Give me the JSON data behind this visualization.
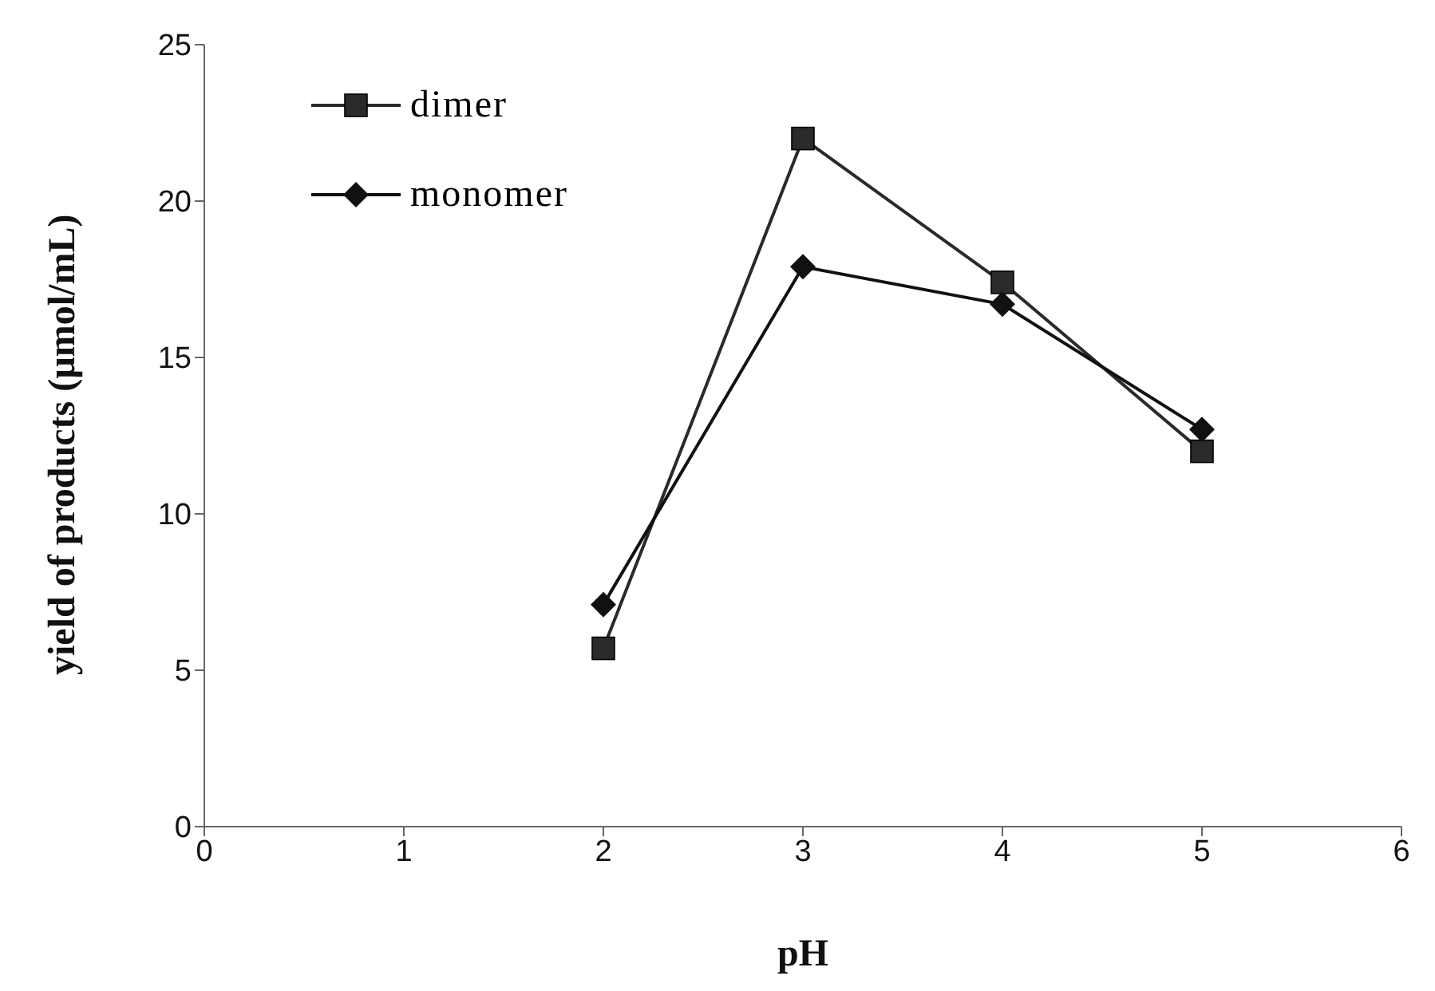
{
  "chart_data": {
    "type": "line",
    "xlabel": "pH",
    "ylabel": "yield of products (µmol/mL)",
    "x": [
      2,
      3,
      4,
      5
    ],
    "series": [
      {
        "name": "dimer",
        "color": "#2a2a2a",
        "marker": "square",
        "values": [
          5.7,
          22,
          17.4,
          12
        ]
      },
      {
        "name": "monomer",
        "color": "#111111",
        "marker": "diamond",
        "values": [
          7.1,
          17.9,
          16.7,
          12.7
        ]
      }
    ],
    "xlim": [
      0,
      6
    ],
    "xticks": [
      0,
      1,
      2,
      3,
      4,
      5,
      6
    ],
    "ylim": [
      0,
      25
    ],
    "yticks": [
      0,
      5,
      10,
      15,
      20,
      25
    ],
    "grid": false,
    "legend": "top left"
  }
}
